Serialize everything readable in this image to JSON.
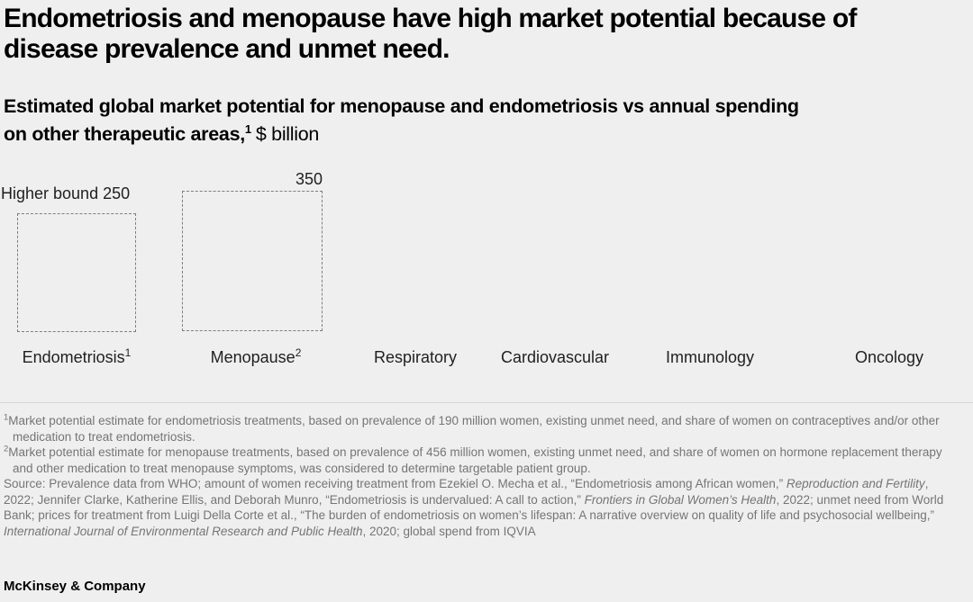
{
  "header": {
    "title_line1": "Endometriosis and menopause have high market potential because of",
    "title_line2": "disease prevalence and unmet need.",
    "subtitle_line1": "Estimated global market potential for menopause and endometriosis vs annual spending",
    "subtitle_line2_bold": "on other therapeutic areas,",
    "subtitle_footnote_ref": "1",
    "subtitle_unit": "$ billion"
  },
  "chart": {
    "endometriosis_value_label": "Higher bound 250",
    "menopause_value_label": "350",
    "categories": [
      {
        "name": "Endometriosis",
        "sup": "1"
      },
      {
        "name": "Menopause",
        "sup": "2"
      },
      {
        "name": "Respiratory",
        "sup": ""
      },
      {
        "name": "Cardiovascular",
        "sup": ""
      },
      {
        "name": "Immunology",
        "sup": ""
      },
      {
        "name": "Oncology",
        "sup": ""
      }
    ]
  },
  "chart_data": {
    "type": "bar",
    "title": "Estimated global market potential for menopause and endometriosis vs annual spending on other therapeutic areas, $ billion",
    "unit": "$ billion",
    "categories": [
      "Endometriosis",
      "Menopause",
      "Respiratory",
      "Cardiovascular",
      "Immunology",
      "Oncology"
    ],
    "values": [
      250,
      350,
      null,
      null,
      null,
      null
    ],
    "annotations": [
      {
        "category": "Endometriosis",
        "label": "Higher bound 250",
        "value": 250
      },
      {
        "category": "Menopause",
        "label": "350",
        "value": 350
      }
    ],
    "style": "area-proportional dashed-outline squares anchored to a common baseline; values for Respiratory, Cardiovascular, Immunology and Oncology are not displayed in this frame",
    "legend": "none",
    "grid": "off"
  },
  "notes": {
    "footnotes": [
      {
        "marker": "1",
        "text": "Market potential estimate for endometriosis treatments, based on prevalence of 190 million women, existing unmet need, and share of women on contraceptives and/or other medication to treat endometriosis."
      },
      {
        "marker": "2",
        "text": "Market potential estimate for menopause treatments, based on prevalence of 456 million women, existing unmet need, and share of women on hormone replacement therapy and other medication to treat menopause symptoms, was considered to determine targetable patient group."
      }
    ],
    "source": {
      "segments": [
        {
          "text": "Source: Prevalence data from WHO; amount of women receiving treatment from Ezekiel O. Mecha et al., “Endometriosis among African women,” ",
          "italic": false
        },
        {
          "text": "Reproduction and Fertility",
          "italic": true
        },
        {
          "text": ", 2022; Jennifer Clarke, Katherine Ellis, and Deborah Munro, “Endometriosis is undervalued: A call to action,” ",
          "italic": false
        },
        {
          "text": "Frontiers in Global Women’s Health",
          "italic": true
        },
        {
          "text": ", 2022; unmet need from World Bank; prices for treatment from Luigi Della Corte et al., “The burden of endometriosis on women’s lifespan: A narrative overview on quality of life and psychosocial wellbeing,” ",
          "italic": false
        },
        {
          "text": "International Journal of Environmental Research and Public Health",
          "italic": true
        },
        {
          "text": ", 2020; global spend from IQVIA",
          "italic": false
        }
      ]
    }
  },
  "footer": {
    "brand": "McKinsey & Company"
  },
  "colors": {
    "background": "#efefef",
    "text_primary": "#000000",
    "text_secondary": "#1f1f1f",
    "footnote_gray": "#757575",
    "dash_border": "#7e7e7e",
    "divider": "#d6d6d6"
  }
}
